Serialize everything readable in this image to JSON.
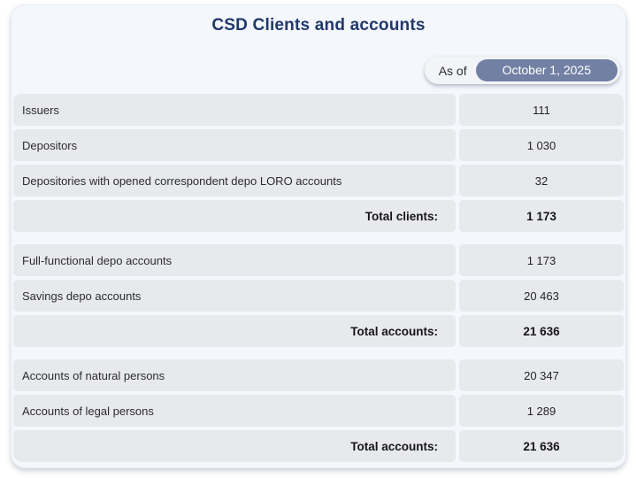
{
  "title": "CSD Clients and accounts",
  "as_of": {
    "label": "As of",
    "date": "October 1, 2025"
  },
  "colors": {
    "title_navy": "#21386c",
    "date_pill_bg": "#7280a4",
    "date_pill_text": "#ffffff",
    "row_bg": "#e8e9ed",
    "card_bg": "#f4f7fc"
  },
  "sections": [
    {
      "rows": [
        {
          "label": "Issuers",
          "value": "111"
        },
        {
          "label": "Depositors",
          "value": "1 030"
        },
        {
          "label": "Depositories with opened correspondent depo LORO accounts",
          "value": "32"
        }
      ],
      "total": {
        "label": "Total clients:",
        "value": "1 173"
      }
    },
    {
      "rows": [
        {
          "label": "Full-functional depo accounts",
          "value": "1 173"
        },
        {
          "label": "Savings depo accounts",
          "value": "20 463"
        }
      ],
      "total": {
        "label": "Total accounts:",
        "value": "21 636"
      }
    },
    {
      "rows": [
        {
          "label": "Accounts of natural persons",
          "value": "20 347"
        },
        {
          "label": "Accounts of legal persons",
          "value": "1 289"
        }
      ],
      "total": {
        "label": "Total accounts:",
        "value": "21 636"
      }
    }
  ]
}
